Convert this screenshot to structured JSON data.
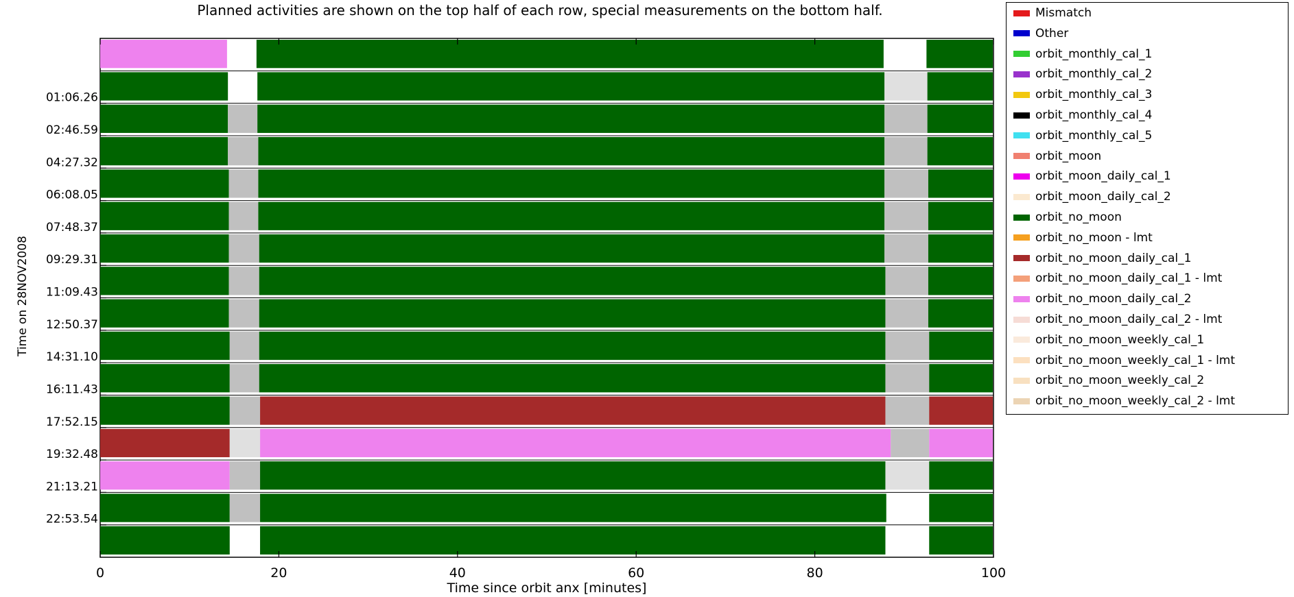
{
  "chart_data": {
    "type": "timeline",
    "title_line1": "Planned activities are shown on the top half of each row, special measurements on the bottom half.",
    "xlabel": "Time since orbit anx [minutes]",
    "ylabel": "Time on 28NOV2008",
    "xlim": [
      0,
      100
    ],
    "x_ticks": [
      0,
      20,
      40,
      60,
      80,
      100
    ],
    "y_tick_labels": [
      "01:06.26",
      "02:46.59",
      "04:27.32",
      "06:08.05",
      "07:48.37",
      "09:29.31",
      "11:09.43",
      "12:50.37",
      "14:31.10",
      "16:11.43",
      "17:52.15",
      "19:32.48",
      "21:13.21",
      "22:53.54"
    ],
    "colors": {
      "orbit_no_moon": "#006400",
      "orbit_no_moon_daily_cal_1": "#a52a2a",
      "orbit_no_moon_daily_cal_2": "#ee82ee",
      "gap": "#c0c0c0",
      "gap_light": "#e0e0e0"
    },
    "rows": [
      {
        "segments": [
          [
            0,
            14.2,
            "orbit_no_moon_daily_cal_2"
          ],
          [
            17.5,
            87.7,
            "orbit_no_moon"
          ],
          [
            92.5,
            100.5,
            "orbit_no_moon"
          ]
        ]
      },
      {
        "segments": [
          [
            0,
            14.3,
            "orbit_no_moon"
          ],
          [
            17.6,
            87.8,
            "orbit_no_moon"
          ],
          [
            87.8,
            92.6,
            "gap_light"
          ],
          [
            92.6,
            100.5,
            "orbit_no_moon"
          ]
        ]
      },
      {
        "segments": [
          [
            0,
            14.3,
            "orbit_no_moon"
          ],
          [
            14.3,
            17.6,
            "gap"
          ],
          [
            17.6,
            87.8,
            "orbit_no_moon"
          ],
          [
            87.8,
            92.6,
            "gap"
          ],
          [
            92.6,
            100.5,
            "orbit_no_moon"
          ]
        ]
      },
      {
        "segments": [
          [
            0,
            14.3,
            "orbit_no_moon"
          ],
          [
            14.3,
            17.7,
            "gap"
          ],
          [
            17.7,
            87.8,
            "orbit_no_moon"
          ],
          [
            87.8,
            92.6,
            "gap"
          ],
          [
            92.6,
            100.5,
            "orbit_no_moon"
          ]
        ]
      },
      {
        "segments": [
          [
            0,
            14.4,
            "orbit_no_moon"
          ],
          [
            14.4,
            17.7,
            "gap"
          ],
          [
            17.7,
            87.8,
            "orbit_no_moon"
          ],
          [
            87.8,
            92.7,
            "gap"
          ],
          [
            92.7,
            100.5,
            "orbit_no_moon"
          ]
        ]
      },
      {
        "segments": [
          [
            0,
            14.4,
            "orbit_no_moon"
          ],
          [
            14.4,
            17.7,
            "gap"
          ],
          [
            17.7,
            87.8,
            "orbit_no_moon"
          ],
          [
            87.8,
            92.7,
            "gap"
          ],
          [
            92.7,
            100.5,
            "orbit_no_moon"
          ]
        ]
      },
      {
        "segments": [
          [
            0,
            14.4,
            "orbit_no_moon"
          ],
          [
            14.4,
            17.8,
            "gap"
          ],
          [
            17.8,
            87.8,
            "orbit_no_moon"
          ],
          [
            87.8,
            92.7,
            "gap"
          ],
          [
            92.7,
            100.5,
            "orbit_no_moon"
          ]
        ]
      },
      {
        "segments": [
          [
            0,
            14.4,
            "orbit_no_moon"
          ],
          [
            14.4,
            17.8,
            "gap"
          ],
          [
            17.8,
            87.9,
            "orbit_no_moon"
          ],
          [
            87.9,
            92.7,
            "gap"
          ],
          [
            92.7,
            100.5,
            "orbit_no_moon"
          ]
        ]
      },
      {
        "segments": [
          [
            0,
            14.4,
            "orbit_no_moon"
          ],
          [
            14.4,
            17.8,
            "gap"
          ],
          [
            17.8,
            87.9,
            "orbit_no_moon"
          ],
          [
            87.9,
            92.7,
            "gap"
          ],
          [
            92.7,
            100.5,
            "orbit_no_moon"
          ]
        ]
      },
      {
        "segments": [
          [
            0,
            14.5,
            "orbit_no_moon"
          ],
          [
            14.5,
            17.8,
            "gap"
          ],
          [
            17.8,
            87.9,
            "orbit_no_moon"
          ],
          [
            87.9,
            92.8,
            "gap"
          ],
          [
            92.8,
            100.5,
            "orbit_no_moon"
          ]
        ]
      },
      {
        "segments": [
          [
            0,
            14.5,
            "orbit_no_moon"
          ],
          [
            14.5,
            17.8,
            "gap"
          ],
          [
            17.8,
            87.9,
            "orbit_no_moon"
          ],
          [
            87.9,
            92.8,
            "gap"
          ],
          [
            92.8,
            100.5,
            "orbit_no_moon"
          ]
        ]
      },
      {
        "segments": [
          [
            0,
            14.5,
            "orbit_no_moon"
          ],
          [
            14.5,
            17.9,
            "gap"
          ],
          [
            17.9,
            87.9,
            "orbit_no_moon_daily_cal_1"
          ],
          [
            87.9,
            92.8,
            "gap"
          ],
          [
            92.8,
            100.5,
            "orbit_no_moon_daily_cal_1"
          ]
        ]
      },
      {
        "segments": [
          [
            0,
            14.5,
            "orbit_no_moon_daily_cal_1"
          ],
          [
            14.5,
            17.9,
            "gap_light"
          ],
          [
            17.9,
            88.5,
            "orbit_no_moon_daily_cal_2"
          ],
          [
            88.5,
            92.8,
            "gap"
          ],
          [
            92.8,
            100.5,
            "orbit_no_moon_daily_cal_2"
          ]
        ]
      },
      {
        "segments": [
          [
            0,
            14.5,
            "orbit_no_moon_daily_cal_2"
          ],
          [
            14.5,
            17.9,
            "gap"
          ],
          [
            17.9,
            87.9,
            "orbit_no_moon"
          ],
          [
            87.9,
            92.8,
            "gap_light"
          ],
          [
            92.8,
            100.5,
            "orbit_no_moon"
          ]
        ]
      },
      {
        "segments": [
          [
            0,
            14.5,
            "orbit_no_moon"
          ],
          [
            14.5,
            17.9,
            "gap"
          ],
          [
            17.9,
            88.0,
            "orbit_no_moon"
          ],
          [
            92.8,
            100.5,
            "orbit_no_moon"
          ]
        ]
      },
      {
        "segments": [
          [
            0,
            14.5,
            "orbit_no_moon"
          ],
          [
            17.9,
            87.9,
            "orbit_no_moon"
          ],
          [
            92.8,
            100.5,
            "orbit_no_moon"
          ]
        ]
      }
    ],
    "legend": [
      {
        "label": "Mismatch",
        "color": "#e41a1c"
      },
      {
        "label": "Other",
        "color": "#0000cd"
      },
      {
        "label": "orbit_monthly_cal_1",
        "color": "#32cd32"
      },
      {
        "label": "orbit_monthly_cal_2",
        "color": "#9932cc"
      },
      {
        "label": "orbit_monthly_cal_3",
        "color": "#f2c80f"
      },
      {
        "label": "orbit_monthly_cal_4",
        "color": "#000000"
      },
      {
        "label": "orbit_monthly_cal_5",
        "color": "#40e0f0"
      },
      {
        "label": "orbit_moon",
        "color": "#f08070"
      },
      {
        "label": "orbit_moon_daily_cal_1",
        "color": "#ee00ee"
      },
      {
        "label": "orbit_moon_daily_cal_2",
        "color": "#fbe9d0"
      },
      {
        "label": "orbit_no_moon",
        "color": "#006400"
      },
      {
        "label": "orbit_no_moon - lmt",
        "color": "#f5a020"
      },
      {
        "label": "orbit_no_moon_daily_cal_1",
        "color": "#a52a2a"
      },
      {
        "label": "orbit_no_moon_daily_cal_1 - lmt",
        "color": "#f4a07a"
      },
      {
        "label": "orbit_no_moon_daily_cal_2",
        "color": "#ee82ee"
      },
      {
        "label": "orbit_no_moon_daily_cal_2 - lmt",
        "color": "#f6dcd6"
      },
      {
        "label": "orbit_no_moon_weekly_cal_1",
        "color": "#faeadc"
      },
      {
        "label": "orbit_no_moon_weekly_cal_1 - lmt",
        "color": "#fce0c0"
      },
      {
        "label": "orbit_no_moon_weekly_cal_2",
        "color": "#f8e0c0"
      },
      {
        "label": "orbit_no_moon_weekly_cal_2 - lmt",
        "color": "#ecd4b4"
      }
    ]
  }
}
